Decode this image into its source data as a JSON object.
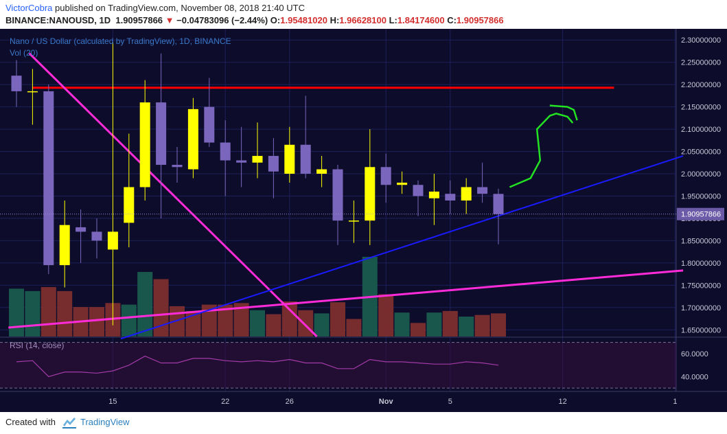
{
  "header": {
    "author": "VictorCobra",
    "published_text": " published on TradingView.com, November 08, 2018 21:40 UTC",
    "symbol": "BINANCE:NANOUSD, 1D",
    "last_price": "1.90957866",
    "change_arrow": "▼",
    "change": "−0.04783096 (−2.44%)",
    "o_label": "O:",
    "o_value": "1.95481020",
    "h_label": "H:",
    "h_value": "1.96628100",
    "l_label": "L:",
    "l_value": "1.84174600",
    "c_label": "C:",
    "c_value": "1.90957866"
  },
  "footer": {
    "created_with": "Created with",
    "brand": "TradingView"
  },
  "chart_data": {
    "type": "candlestick",
    "title": "Nano / US Dollar (calculated by TradingView), 1D, BINANCE",
    "volume_label": "Vol (20)",
    "rsi_label": "RSI (14, close)",
    "price_axis": {
      "range": [
        1.635,
        2.325
      ],
      "ticks": [
        "2.30000000",
        "2.25000000",
        "2.20000000",
        "2.15000000",
        "2.10000000",
        "2.05000000",
        "2.00000000",
        "1.95000000",
        "1.90000000",
        "1.85000000",
        "1.80000000",
        "1.75000000",
        "1.70000000",
        "1.65000000"
      ]
    },
    "last_price_label": "1.90957866",
    "rsi_axis": {
      "range": [
        27,
        74
      ],
      "ticks": [
        "60.0000",
        "40.0000"
      ],
      "band_upper": 70,
      "band_lower": 30
    },
    "x_axis": {
      "labels": [
        {
          "text": "15",
          "index": 6
        },
        {
          "text": "22",
          "index": 13
        },
        {
          "text": "26",
          "index": 17
        },
        {
          "text": "Nov",
          "index": 23,
          "bold": true
        },
        {
          "text": "5",
          "index": 27
        },
        {
          "text": "12",
          "index": 34
        },
        {
          "text": "1",
          "index": 41
        }
      ]
    },
    "colors": {
      "up": "#ffff00",
      "down": "#7b66bd",
      "wick": "#ffff00",
      "wick_down": "#7b66bd",
      "vol_up": "#1a5c4e",
      "vol_down": "#7d2e2e",
      "background": "#0d0d2b",
      "grid": "#1d1f5a",
      "resistance": "#ff0000",
      "trend_magenta": "#ff2bd9",
      "trend_blue": "#1a1aff",
      "arrow_green": "#22e222",
      "rsi": "#a23aa8"
    },
    "candles": [
      {
        "o": 2.22,
        "h": 2.255,
        "l": 2.15,
        "c": 2.185
      },
      {
        "o": 2.185,
        "h": 2.235,
        "l": 2.11,
        "c": 2.185
      },
      {
        "o": 2.185,
        "h": 2.2,
        "l": 1.775,
        "c": 1.795
      },
      {
        "o": 1.795,
        "h": 1.94,
        "l": 1.745,
        "c": 1.885
      },
      {
        "o": 1.88,
        "h": 1.92,
        "l": 1.8,
        "c": 1.87
      },
      {
        "o": 1.87,
        "h": 1.9,
        "l": 1.81,
        "c": 1.85
      },
      {
        "o": 1.83,
        "h": 2.295,
        "l": 1.66,
        "c": 1.87
      },
      {
        "o": 1.89,
        "h": 2.09,
        "l": 1.835,
        "c": 1.97
      },
      {
        "o": 1.97,
        "h": 2.21,
        "l": 1.94,
        "c": 2.16
      },
      {
        "o": 2.16,
        "h": 2.27,
        "l": 1.9,
        "c": 2.02
      },
      {
        "o": 2.02,
        "h": 2.06,
        "l": 1.98,
        "c": 2.015
      },
      {
        "o": 2.01,
        "h": 2.17,
        "l": 1.99,
        "c": 2.145
      },
      {
        "o": 2.15,
        "h": 2.215,
        "l": 2.06,
        "c": 2.07
      },
      {
        "o": 2.07,
        "h": 2.12,
        "l": 1.95,
        "c": 2.03
      },
      {
        "o": 2.03,
        "h": 2.105,
        "l": 1.97,
        "c": 2.025
      },
      {
        "o": 2.025,
        "h": 2.115,
        "l": 1.99,
        "c": 2.04
      },
      {
        "o": 2.04,
        "h": 2.08,
        "l": 1.945,
        "c": 2.005
      },
      {
        "o": 2.0,
        "h": 2.105,
        "l": 1.98,
        "c": 2.065
      },
      {
        "o": 2.065,
        "h": 2.175,
        "l": 1.99,
        "c": 2.0
      },
      {
        "o": 2.0,
        "h": 2.04,
        "l": 1.97,
        "c": 2.01
      },
      {
        "o": 2.01,
        "h": 2.02,
        "l": 1.84,
        "c": 1.895
      },
      {
        "o": 1.895,
        "h": 1.94,
        "l": 1.845,
        "c": 1.895
      },
      {
        "o": 1.895,
        "h": 2.1,
        "l": 1.84,
        "c": 2.015
      },
      {
        "o": 2.015,
        "h": 2.045,
        "l": 1.935,
        "c": 1.975
      },
      {
        "o": 1.975,
        "h": 2.005,
        "l": 1.955,
        "c": 1.98
      },
      {
        "o": 1.975,
        "h": 1.985,
        "l": 1.905,
        "c": 1.95
      },
      {
        "o": 1.945,
        "h": 2.0,
        "l": 1.885,
        "c": 1.96
      },
      {
        "o": 1.955,
        "h": 1.985,
        "l": 1.91,
        "c": 1.94
      },
      {
        "o": 1.94,
        "h": 1.99,
        "l": 1.91,
        "c": 1.97
      },
      {
        "o": 1.97,
        "h": 2.025,
        "l": 1.935,
        "c": 1.955
      },
      {
        "o": 1.9548102,
        "h": 1.966281,
        "l": 1.841746,
        "c": 1.90957866
      }
    ],
    "volumes": [
      {
        "v": 0.6,
        "dir": "up"
      },
      {
        "v": 0.57,
        "dir": "up"
      },
      {
        "v": 0.62,
        "dir": "down"
      },
      {
        "v": 0.57,
        "dir": "down"
      },
      {
        "v": 0.37,
        "dir": "down"
      },
      {
        "v": 0.37,
        "dir": "down"
      },
      {
        "v": 0.42,
        "dir": "down"
      },
      {
        "v": 0.4,
        "dir": "up"
      },
      {
        "v": 0.81,
        "dir": "up"
      },
      {
        "v": 0.72,
        "dir": "down"
      },
      {
        "v": 0.38,
        "dir": "down"
      },
      {
        "v": 0.32,
        "dir": "down"
      },
      {
        "v": 0.4,
        "dir": "down"
      },
      {
        "v": 0.4,
        "dir": "down"
      },
      {
        "v": 0.42,
        "dir": "down"
      },
      {
        "v": 0.33,
        "dir": "up"
      },
      {
        "v": 0.28,
        "dir": "down"
      },
      {
        "v": 0.44,
        "dir": "down"
      },
      {
        "v": 0.33,
        "dir": "down"
      },
      {
        "v": 0.29,
        "dir": "up"
      },
      {
        "v": 0.43,
        "dir": "down"
      },
      {
        "v": 0.22,
        "dir": "down"
      },
      {
        "v": 1.0,
        "dir": "up"
      },
      {
        "v": 0.53,
        "dir": "down"
      },
      {
        "v": 0.3,
        "dir": "up"
      },
      {
        "v": 0.17,
        "dir": "down"
      },
      {
        "v": 0.3,
        "dir": "up"
      },
      {
        "v": 0.32,
        "dir": "down"
      },
      {
        "v": 0.25,
        "dir": "up"
      },
      {
        "v": 0.27,
        "dir": "down"
      },
      {
        "v": 0.29,
        "dir": "down"
      }
    ],
    "rsi": [
      53,
      54,
      40,
      44,
      44,
      43,
      45,
      50,
      58,
      52,
      52,
      56,
      56,
      54,
      53,
      54,
      53,
      55,
      52,
      52,
      47,
      47,
      55,
      53,
      53,
      52,
      51,
      51,
      53,
      52,
      50
    ],
    "drawings": {
      "resistance": {
        "i0": 1.0,
        "i1": 37.2,
        "price": 2.193
      },
      "trend_magenta_down": {
        "i0": 0.8,
        "i1": 18.7,
        "p0": 2.27,
        "p1": 1.635
      },
      "trend_magenta_up": {
        "i0": -0.5,
        "i1": 41.5,
        "p0": 1.655,
        "p1": 1.783
      },
      "trend_blue": {
        "i0": 6.5,
        "i1": 41.5,
        "p0": 1.63,
        "p1": 2.04
      },
      "projection": [
        [
          30.7,
          1.97
        ],
        [
          32.0,
          1.99
        ],
        [
          32.6,
          2.03
        ],
        [
          32.4,
          2.1
        ],
        [
          33.2,
          2.13
        ],
        [
          33.6,
          2.135
        ],
        [
          34.3,
          2.128
        ],
        [
          34.6,
          2.115
        ],
        [
          34.5,
          2.12
        ]
      ],
      "projection_tail": [
        [
          33.2,
          2.153
        ],
        [
          34.3,
          2.15
        ],
        [
          34.7,
          2.143
        ],
        [
          34.9,
          2.12
        ]
      ]
    }
  }
}
